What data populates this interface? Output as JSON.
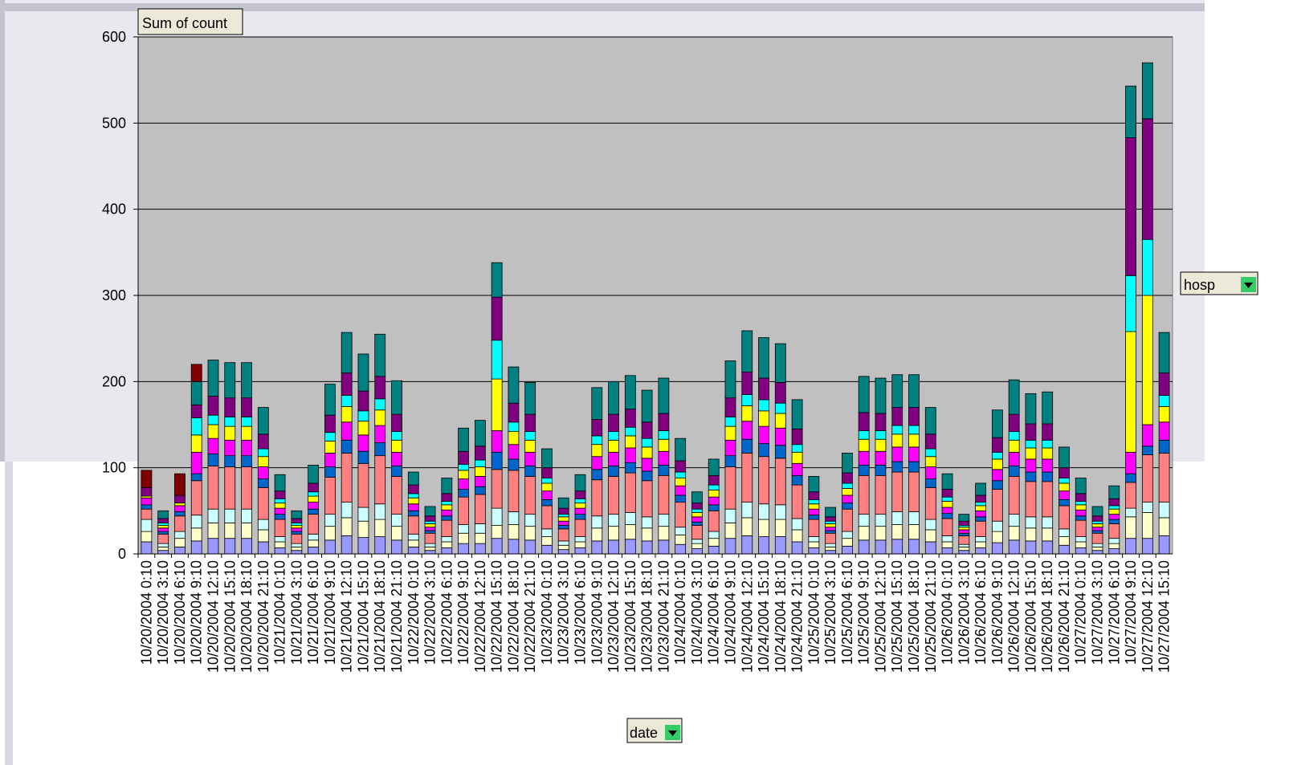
{
  "chart_data": {
    "type": "bar",
    "stacked": true,
    "data_field": "Sum of count",
    "series_field": "hosp",
    "category_field": "date",
    "categories": [
      "10/20/2004 0:10",
      "10/20/2004 3:10",
      "10/20/2004 6:10",
      "10/20/2004 9:10",
      "10/20/2004 12:10",
      "10/20/2004 15:10",
      "10/20/2004 18:10",
      "10/20/2004 21:10",
      "10/21/2004 0:10",
      "10/21/2004 3:10",
      "10/21/2004 6:10",
      "10/21/2004 9:10",
      "10/21/2004 12:10",
      "10/21/2004 15:10",
      "10/21/2004 18:10",
      "10/21/2004 21:10",
      "10/22/2004 0:10",
      "10/22/2004 3:10",
      "10/22/2004 6:10",
      "10/22/2004 9:10",
      "10/22/2004 12:10",
      "10/22/2004 15:10",
      "10/22/2004 18:10",
      "10/22/2004 21:10",
      "10/23/2004 0:10",
      "10/23/2004 3:10",
      "10/23/2004 6:10",
      "10/23/2004 9:10",
      "10/23/2004 12:10",
      "10/23/2004 15:10",
      "10/23/2004 18:10",
      "10/23/2004 21:10",
      "10/24/2004 0:10",
      "10/24/2004 3:10",
      "10/24/2004 6:10",
      "10/24/2004 9:10",
      "10/24/2004 12:10",
      "10/24/2004 15:10",
      "10/24/2004 18:10",
      "10/24/2004 21:10",
      "10/25/2004 0:10",
      "10/25/2004 3:10",
      "10/25/2004 6:10",
      "10/25/2004 9:10",
      "10/25/2004 12:10",
      "10/25/2004 15:10",
      "10/25/2004 18:10",
      "10/25/2004 21:10",
      "10/26/2004 0:10",
      "10/26/2004 3:10",
      "10/26/2004 6:10",
      "10/26/2004 9:10",
      "10/26/2004 12:10",
      "10/26/2004 15:10",
      "10/26/2004 18:10",
      "10/26/2004 21:10",
      "10/27/2004 0:10",
      "10/27/2004 3:10",
      "10/27/2004 6:10",
      "10/27/2004 9:10",
      "10/27/2004 12:10",
      "10/27/2004 15:10"
    ],
    "series": [
      {
        "color": "#9999ff",
        "values": [
          14,
          4,
          8,
          15,
          18,
          18,
          18,
          14,
          7,
          4,
          8,
          16,
          21,
          19,
          20,
          16,
          8,
          4,
          7,
          12,
          12,
          18,
          17,
          16,
          10,
          5,
          7,
          15,
          16,
          17,
          15,
          16,
          11,
          6,
          9,
          18,
          21,
          20,
          20,
          14,
          7,
          4,
          9,
          16,
          16,
          17,
          17,
          14,
          7,
          4,
          7,
          13,
          16,
          15,
          15,
          10,
          7,
          4,
          6,
          18,
          18,
          21
        ]
      },
      {
        "color": "#ffffcc",
        "values": [
          12,
          4,
          10,
          15,
          18,
          18,
          18,
          14,
          7,
          4,
          8,
          16,
          21,
          19,
          20,
          16,
          8,
          4,
          7,
          12,
          12,
          15,
          17,
          16,
          10,
          5,
          7,
          15,
          16,
          17,
          15,
          16,
          11,
          6,
          9,
          18,
          21,
          20,
          20,
          14,
          7,
          4,
          9,
          16,
          16,
          17,
          17,
          14,
          7,
          4,
          7,
          13,
          16,
          15,
          15,
          10,
          7,
          4,
          6,
          25,
          30,
          21
        ]
      },
      {
        "color": "#ccffff",
        "values": [
          14,
          4,
          8,
          15,
          16,
          16,
          16,
          12,
          6,
          4,
          7,
          14,
          18,
          16,
          18,
          14,
          7,
          4,
          6,
          10,
          11,
          20,
          15,
          14,
          9,
          5,
          6,
          14,
          14,
          14,
          13,
          14,
          9,
          5,
          8,
          16,
          18,
          18,
          17,
          13,
          6,
          4,
          8,
          14,
          14,
          15,
          15,
          12,
          7,
          3,
          6,
          12,
          14,
          13,
          13,
          9,
          6,
          4,
          6,
          10,
          12,
          18
        ]
      },
      {
        "color": "#ff8080",
        "values": [
          12,
          11,
          18,
          40,
          50,
          49,
          49,
          37,
          20,
          11,
          23,
          43,
          57,
          51,
          56,
          44,
          21,
          12,
          19,
          32,
          34,
          45,
          48,
          44,
          27,
          14,
          20,
          42,
          44,
          46,
          42,
          45,
          29,
          16,
          24,
          49,
          57,
          55,
          54,
          39,
          20,
          12,
          26,
          45,
          45,
          46,
          46,
          37,
          20,
          10,
          18,
          37,
          44,
          41,
          41,
          27,
          19,
          12,
          17,
          30,
          55,
          57
        ]
      },
      {
        "color": "#0066cc",
        "values": [
          5,
          3,
          5,
          8,
          14,
          13,
          13,
          10,
          6,
          3,
          6,
          12,
          15,
          14,
          15,
          12,
          6,
          3,
          5,
          9,
          9,
          20,
          13,
          12,
          7,
          4,
          6,
          12,
          12,
          12,
          11,
          12,
          8,
          4,
          7,
          13,
          16,
          15,
          15,
          11,
          5,
          3,
          7,
          12,
          12,
          12,
          12,
          10,
          6,
          3,
          5,
          10,
          12,
          11,
          11,
          7,
          5,
          3,
          5,
          10,
          10,
          15
        ]
      },
      {
        "color": "#ff00ff",
        "values": [
          8,
          4,
          7,
          25,
          18,
          18,
          18,
          14,
          7,
          4,
          8,
          16,
          21,
          19,
          20,
          16,
          8,
          4,
          7,
          12,
          12,
          25,
          17,
          16,
          10,
          5,
          7,
          15,
          16,
          17,
          15,
          16,
          11,
          6,
          9,
          18,
          21,
          20,
          20,
          14,
          7,
          4,
          9,
          16,
          16,
          17,
          17,
          14,
          7,
          4,
          7,
          13,
          16,
          15,
          15,
          10,
          7,
          4,
          6,
          25,
          25,
          21
        ]
      },
      {
        "color": "#ffff00",
        "values": [
          2,
          3,
          3,
          20,
          16,
          16,
          16,
          12,
          6,
          3,
          7,
          14,
          18,
          16,
          18,
          14,
          7,
          4,
          6,
          10,
          11,
          60,
          15,
          14,
          9,
          5,
          6,
          14,
          14,
          14,
          13,
          14,
          9,
          5,
          8,
          16,
          18,
          18,
          17,
          13,
          6,
          4,
          8,
          14,
          14,
          15,
          15,
          12,
          7,
          3,
          6,
          12,
          14,
          13,
          13,
          9,
          6,
          4,
          6,
          140,
          150,
          18
        ]
      },
      {
        "color": "#00ffff",
        "values": [
          0,
          3,
          0,
          20,
          11,
          11,
          11,
          9,
          5,
          3,
          5,
          10,
          13,
          12,
          13,
          10,
          5,
          3,
          4,
          7,
          8,
          45,
          11,
          10,
          6,
          3,
          5,
          10,
          10,
          10,
          10,
          10,
          7,
          4,
          6,
          11,
          13,
          13,
          12,
          9,
          5,
          3,
          6,
          10,
          10,
          10,
          10,
          9,
          5,
          2,
          4,
          8,
          10,
          9,
          9,
          6,
          4,
          3,
          4,
          65,
          65,
          13
        ]
      },
      {
        "color": "#800080",
        "values": [
          10,
          5,
          9,
          15,
          22,
          22,
          22,
          17,
          9,
          5,
          10,
          20,
          26,
          23,
          26,
          20,
          10,
          6,
          9,
          15,
          16,
          50,
          22,
          20,
          12,
          7,
          9,
          19,
          20,
          21,
          19,
          20,
          13,
          7,
          11,
          22,
          26,
          25,
          24,
          18,
          9,
          5,
          12,
          21,
          20,
          21,
          21,
          17,
          9,
          5,
          8,
          17,
          20,
          19,
          19,
          12,
          9,
          6,
          8,
          160,
          140,
          26
        ]
      },
      {
        "color": "#008080",
        "values": [
          0,
          9,
          0,
          27,
          42,
          41,
          41,
          31,
          19,
          9,
          21,
          36,
          47,
          43,
          49,
          39,
          15,
          11,
          18,
          27,
          30,
          40,
          42,
          37,
          22,
          12,
          19,
          37,
          38,
          39,
          37,
          41,
          26,
          13,
          19,
          43,
          48,
          47,
          45,
          34,
          18,
          11,
          23,
          42,
          41,
          38,
          38,
          31,
          18,
          8,
          14,
          32,
          40,
          35,
          37,
          24,
          18,
          11,
          15,
          60,
          65,
          47
        ]
      },
      {
        "color": "#800000",
        "values": [
          20,
          0,
          25,
          20,
          0,
          0,
          0,
          0,
          0,
          0,
          0,
          0,
          0,
          0,
          0,
          0,
          0,
          0,
          0,
          0,
          0,
          0,
          0,
          0,
          0,
          0,
          0,
          0,
          0,
          0,
          0,
          0,
          0,
          0,
          0,
          0,
          0,
          0,
          0,
          0,
          0,
          0,
          0,
          0,
          0,
          0,
          0,
          0,
          0,
          0,
          0,
          0,
          0,
          0,
          0,
          0,
          0,
          0,
          0,
          0,
          0,
          0
        ]
      }
    ],
    "ylim": [
      0,
      600
    ],
    "yticks": [
      0,
      100,
      200,
      300,
      400,
      500,
      600
    ],
    "grid": true,
    "plot_color": "#c0c0c0"
  }
}
